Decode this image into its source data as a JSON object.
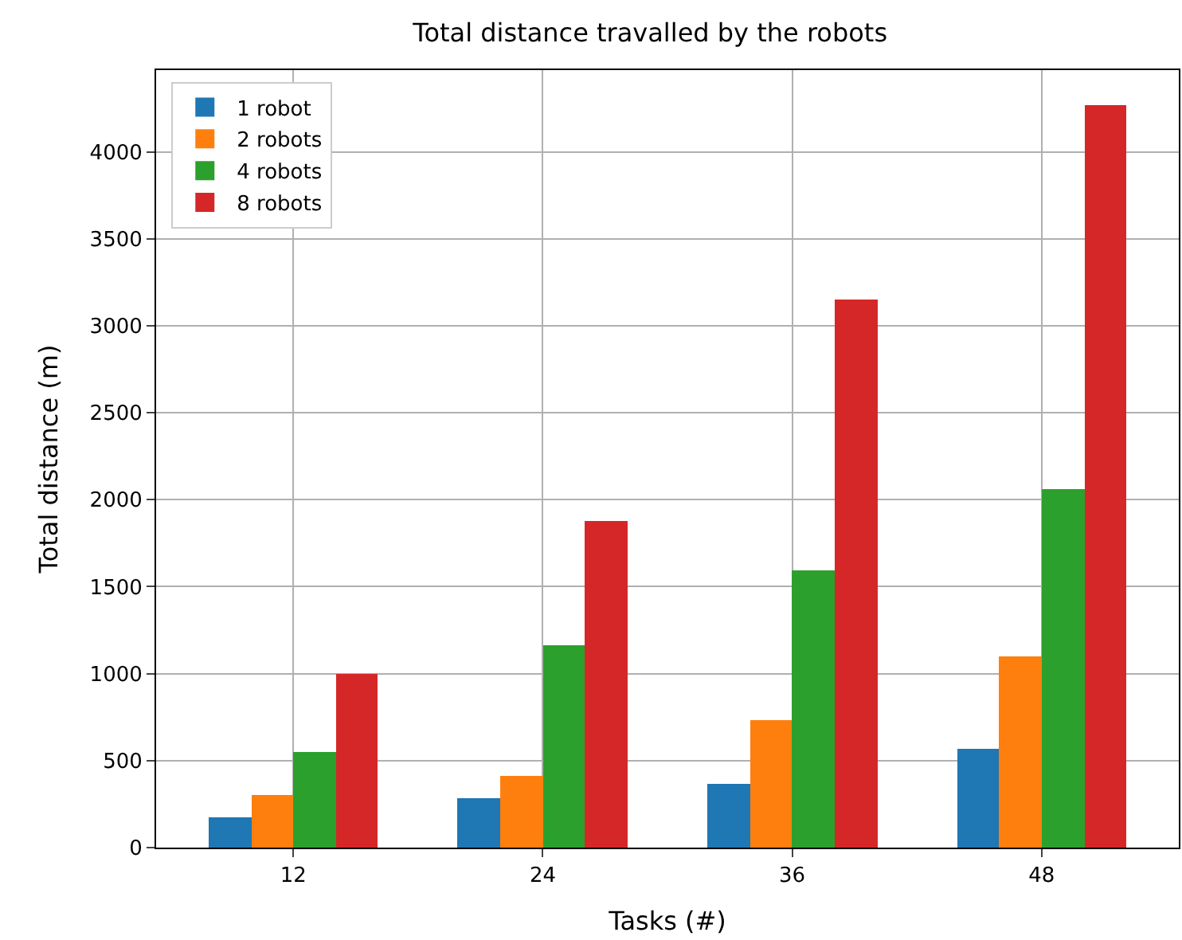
{
  "chart_data": {
    "type": "bar",
    "title": "Total distance travalled by the robots",
    "xlabel": "Tasks (#)",
    "ylabel": "Total distance (m)",
    "categories": [
      "12",
      "24",
      "36",
      "48"
    ],
    "series": [
      {
        "name": "1 robot",
        "color": "#1f77b4",
        "values": [
          170,
          280,
          370,
          570
        ]
      },
      {
        "name": "2 robots",
        "color": "#ff7f0e",
        "values": [
          300,
          410,
          730,
          1100
        ]
      },
      {
        "name": "4 robots",
        "color": "#2ca02c",
        "values": [
          550,
          1160,
          1590,
          2060
        ]
      },
      {
        "name": "8 robots",
        "color": "#d62728",
        "values": [
          1000,
          1880,
          3150,
          4270
        ]
      }
    ],
    "ylim": [
      0,
      4470
    ],
    "yticks": [
      0,
      500,
      1000,
      1500,
      2000,
      2500,
      3000,
      3500,
      4000
    ],
    "grid": true,
    "legend": "top left"
  }
}
